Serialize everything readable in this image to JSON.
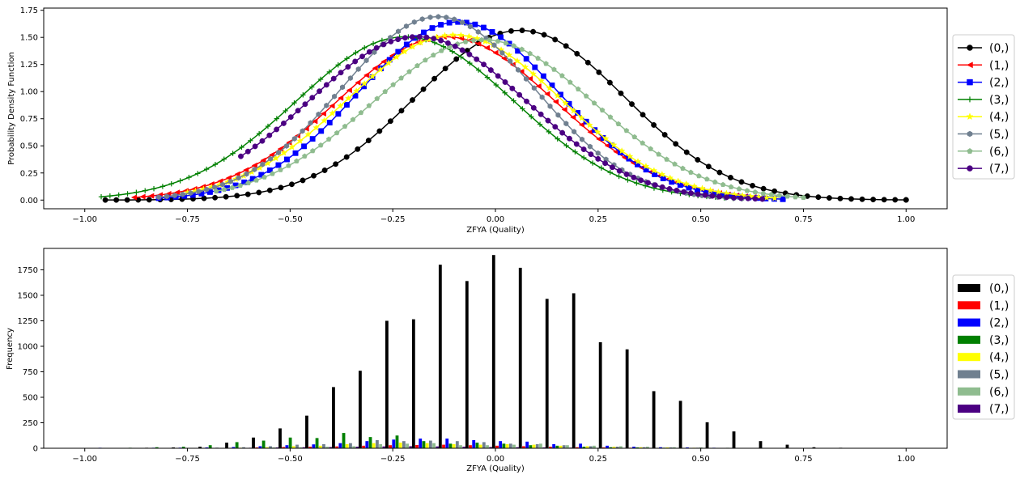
{
  "chart_data": [
    {
      "type": "line",
      "title": "",
      "xlabel": "ZFYA (Quality)",
      "ylabel": "Probability Density Function",
      "xlim": [
        -1.1,
        1.1
      ],
      "ylim": [
        -0.08,
        1.77
      ],
      "xticks": [
        -1.0,
        -0.75,
        -0.5,
        -0.25,
        0.0,
        0.25,
        0.5,
        0.75,
        1.0
      ],
      "xtick_labels": [
        "−1.00",
        "−0.75",
        "−0.50",
        "−0.25",
        "0.00",
        "0.25",
        "0.50",
        "0.75",
        "1.00"
      ],
      "yticks": [
        0.0,
        0.25,
        0.5,
        0.75,
        1.0,
        1.25,
        1.5,
        1.75
      ],
      "ytick_labels": [
        "0.00",
        "0.25",
        "0.50",
        "0.75",
        "1.00",
        "1.25",
        "1.50",
        "1.75"
      ],
      "grid": false,
      "legend_position": "outside-right",
      "series": [
        {
          "name": "(0,)",
          "color": "#000000",
          "marker": "circle",
          "mean": 0.06,
          "sd": 0.255,
          "x_min": -0.95,
          "x_max": 1.0
        },
        {
          "name": "(1,)",
          "color": "#ff0000",
          "marker": "triangle-left",
          "mean": -0.12,
          "sd": 0.265,
          "x_min": -0.88,
          "x_max": 0.65
        },
        {
          "name": "(2,)",
          "color": "#0000ff",
          "marker": "square",
          "mean": -0.09,
          "sd": 0.243,
          "x_min": -0.82,
          "x_max": 0.7
        },
        {
          "name": "(3,)",
          "color": "#008000",
          "marker": "plus",
          "mean": -0.22,
          "sd": 0.265,
          "x_min": -0.96,
          "x_max": 0.6
        },
        {
          "name": "(4,)",
          "color": "#ffff00",
          "marker": "star",
          "mean": -0.1,
          "sd": 0.262,
          "x_min": -0.75,
          "x_max": 0.68
        },
        {
          "name": "(5,)",
          "color": "#708090",
          "marker": "hexagon",
          "mean": -0.14,
          "sd": 0.236,
          "x_min": -0.82,
          "x_max": 0.6
        },
        {
          "name": "(6,)",
          "color": "#8fbc8f",
          "marker": "pentagon",
          "mean": -0.03,
          "sd": 0.27,
          "x_min": -0.68,
          "x_max": 0.75
        },
        {
          "name": "(7,)",
          "color": "#4b0082",
          "marker": "circle",
          "mean": -0.19,
          "sd": 0.265,
          "x_min": -0.62,
          "x_max": 0.65
        }
      ]
    },
    {
      "type": "bar",
      "title": "",
      "xlabel": "ZFYA (Quality)",
      "ylabel": "Frequency",
      "xlim": [
        -1.1,
        1.1
      ],
      "ylim": [
        0,
        1960
      ],
      "xticks": [
        -1.0,
        -0.75,
        -0.5,
        -0.25,
        0.0,
        0.25,
        0.5,
        0.75,
        1.0
      ],
      "xtick_labels": [
        "−1.00",
        "−0.75",
        "−0.50",
        "−0.25",
        "0.00",
        "0.25",
        "0.50",
        "0.75",
        "1.00"
      ],
      "yticks": [
        0,
        250,
        500,
        750,
        1000,
        1250,
        1500,
        1750
      ],
      "ytick_labels": [
        "0",
        "250",
        "500",
        "750",
        "1000",
        "1250",
        "1500",
        "1750"
      ],
      "grid": false,
      "legend_position": "outside-right",
      "bin_centers": [
        -0.95,
        -0.885,
        -0.82,
        -0.755,
        -0.69,
        -0.625,
        -0.56,
        -0.495,
        -0.43,
        -0.365,
        -0.3,
        -0.235,
        -0.17,
        -0.105,
        -0.04,
        0.025,
        0.09,
        0.155,
        0.22,
        0.285,
        0.35,
        0.415,
        0.48,
        0.545,
        0.61,
        0.675,
        0.74,
        0.805,
        0.87,
        0.935
      ],
      "series": [
        {
          "name": "(0,)",
          "color": "#000000",
          "values": [
            0,
            0,
            5,
            8,
            15,
            55,
            105,
            195,
            320,
            600,
            760,
            1250,
            1265,
            1800,
            1640,
            1895,
            1770,
            1465,
            1520,
            1040,
            970,
            560,
            465,
            255,
            165,
            70,
            35,
            10,
            5,
            0
          ]
        },
        {
          "name": "(1,)",
          "color": "#ff0000",
          "values": [
            0,
            0,
            0,
            0,
            2,
            4,
            8,
            12,
            15,
            18,
            25,
            30,
            32,
            35,
            30,
            25,
            20,
            15,
            10,
            8,
            5,
            3,
            2,
            1,
            0,
            0,
            0,
            0,
            0,
            0
          ]
        },
        {
          "name": "(2,)",
          "color": "#0000ff",
          "values": [
            5,
            4,
            5,
            6,
            8,
            12,
            20,
            30,
            38,
            50,
            70,
            85,
            95,
            95,
            80,
            70,
            65,
            40,
            45,
            25,
            15,
            10,
            8,
            5,
            4,
            3,
            2,
            1,
            0,
            0
          ]
        },
        {
          "name": "(3,)",
          "color": "#008000",
          "values": [
            0,
            5,
            10,
            15,
            30,
            60,
            75,
            105,
            100,
            150,
            110,
            125,
            70,
            45,
            55,
            45,
            30,
            25,
            15,
            10,
            8,
            5,
            4,
            3,
            2,
            1,
            0,
            0,
            0,
            0
          ]
        },
        {
          "name": "(4,)",
          "color": "#ffff00",
          "values": [
            0,
            0,
            0,
            2,
            3,
            5,
            10,
            20,
            25,
            40,
            50,
            55,
            50,
            40,
            35,
            40,
            35,
            25,
            20,
            15,
            10,
            8,
            5,
            3,
            2,
            1,
            0,
            0,
            0,
            0
          ]
        },
        {
          "name": "(5,)",
          "color": "#708090",
          "values": [
            0,
            0,
            2,
            4,
            6,
            10,
            20,
            35,
            40,
            50,
            80,
            70,
            75,
            70,
            60,
            45,
            40,
            30,
            20,
            15,
            10,
            8,
            5,
            3,
            2,
            1,
            0,
            0,
            0,
            0
          ]
        },
        {
          "name": "(6,)",
          "color": "#8fbc8f",
          "values": [
            0,
            0,
            0,
            0,
            2,
            4,
            8,
            10,
            15,
            20,
            40,
            45,
            50,
            30,
            30,
            35,
            45,
            30,
            25,
            20,
            15,
            10,
            8,
            5,
            3,
            2,
            1,
            0,
            0,
            0
          ]
        },
        {
          "name": "(7,)",
          "color": "#4b0082",
          "values": [
            0,
            0,
            0,
            0,
            2,
            5,
            8,
            10,
            12,
            15,
            18,
            20,
            18,
            15,
            12,
            10,
            8,
            6,
            4,
            3,
            2,
            1,
            1,
            0,
            0,
            0,
            0,
            0,
            0,
            0
          ]
        }
      ]
    }
  ]
}
